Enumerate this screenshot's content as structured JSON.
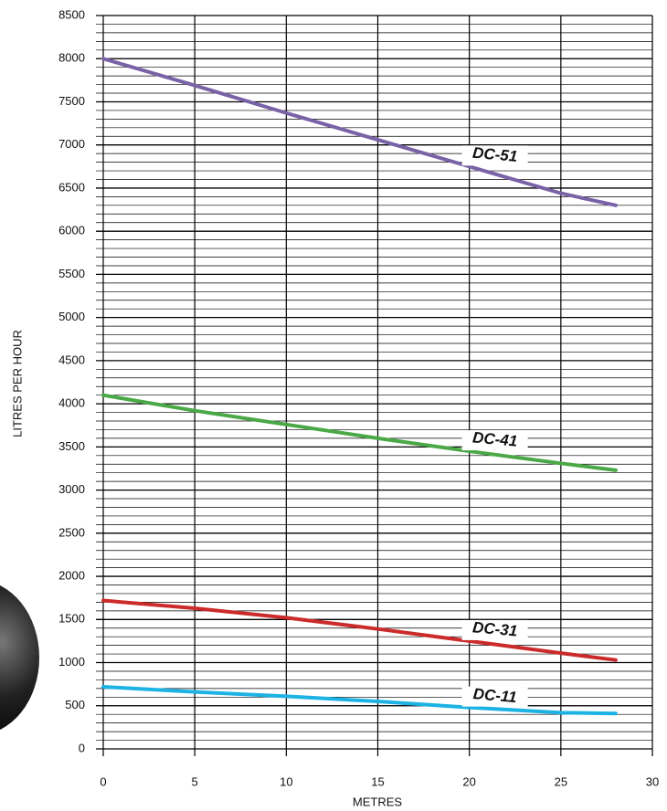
{
  "chart_data": {
    "type": "line",
    "x": [
      0,
      5,
      10,
      15,
      20,
      25,
      28
    ],
    "series": [
      {
        "name": "DC-51",
        "color": "#7a62a6",
        "values": [
          8000,
          7690,
          7370,
          7060,
          6750,
          6440,
          6300
        ]
      },
      {
        "name": "DC-41",
        "color": "#4aa846",
        "values": [
          4100,
          3920,
          3760,
          3600,
          3450,
          3310,
          3230
        ]
      },
      {
        "name": "DC-31",
        "color": "#cc2b2b",
        "values": [
          1720,
          1630,
          1520,
          1390,
          1250,
          1110,
          1030
        ]
      },
      {
        "name": "DC-11",
        "color": "#1cb2e4",
        "values": [
          720,
          660,
          610,
          550,
          480,
          420,
          410
        ]
      }
    ],
    "xlabel": "METRES",
    "ylabel": "LITRES PER HOUR",
    "xlim": [
      0,
      30
    ],
    "xticks": [
      0,
      5,
      10,
      15,
      20,
      25,
      30
    ],
    "ylim": [
      0,
      8500
    ],
    "yticks": [
      0,
      500,
      1000,
      1500,
      2000,
      2500,
      3000,
      3500,
      4000,
      4500,
      5000,
      5500,
      6000,
      6500,
      7000,
      7500,
      8000,
      8500
    ],
    "grid": true
  }
}
